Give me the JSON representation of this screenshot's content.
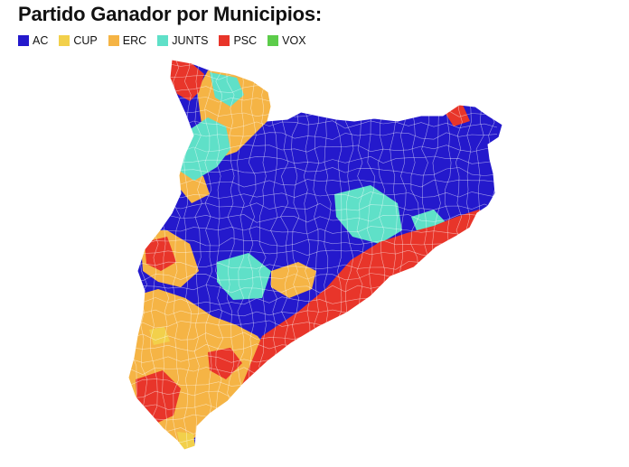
{
  "title": "Partido Ganador por Municipios:",
  "legend": [
    {
      "label": "AC",
      "color": "#2419cc"
    },
    {
      "label": "CUP",
      "color": "#f2d04b"
    },
    {
      "label": "ERC",
      "color": "#f5b445"
    },
    {
      "label": "JUNTS",
      "color": "#5fe0c8"
    },
    {
      "label": "PSC",
      "color": "#e8352a"
    },
    {
      "label": "VOX",
      "color": "#5ccc4a"
    }
  ],
  "map": {
    "region": "Catalunya",
    "unit": "municipios",
    "color_by": "partido ganador",
    "dominant_by_zone": {
      "north-west": "ERC / JUNTS",
      "central & north-east": "AC",
      "coast (Barcelona, Tarragona)": "PSC",
      "south": "ERC / PSC"
    }
  }
}
